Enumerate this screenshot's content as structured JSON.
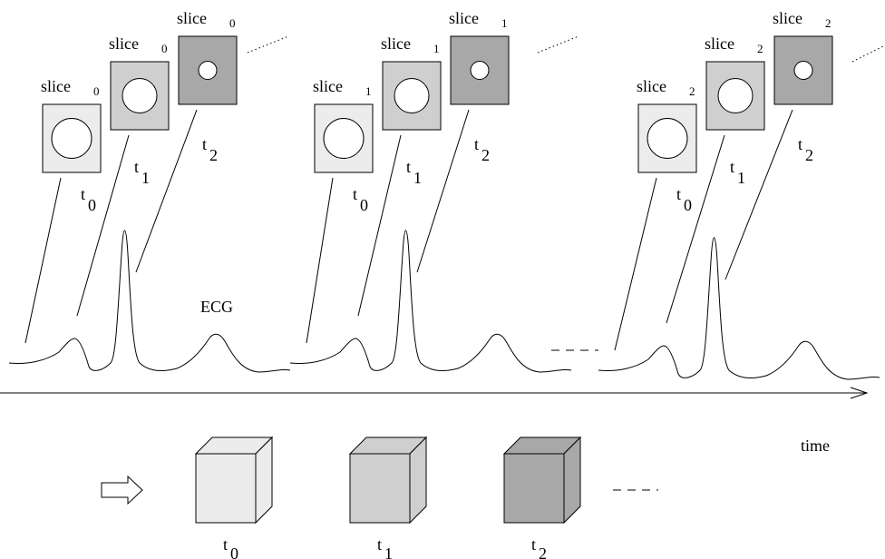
{
  "slice_word": "slice",
  "time_prefix": "t",
  "ecg_label": "ECG",
  "time_axis_label": "time",
  "groups": [
    {
      "slice_index": "0",
      "times": [
        "0",
        "1",
        "2"
      ]
    },
    {
      "slice_index": "1",
      "times": [
        "0",
        "1",
        "2"
      ]
    },
    {
      "slice_index": "2",
      "times": [
        "0",
        "1",
        "2"
      ]
    }
  ],
  "volumes": [
    {
      "time_index": "0",
      "fill": "#ececec"
    },
    {
      "time_index": "1",
      "fill": "#cfcfcf"
    },
    {
      "time_index": "2",
      "fill": "#a8a8a8"
    }
  ],
  "frame_fills": [
    "#ececec",
    "#cfcfcf",
    "#a8a8a8"
  ]
}
